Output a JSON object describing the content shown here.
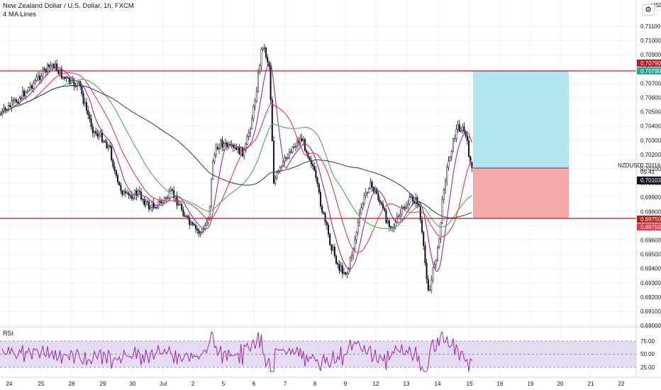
{
  "header": {
    "title": "New Zealand Dollar / U.S. Dollar, 1h, FXCM",
    "indicator": "4 MA Lines"
  },
  "currency": "USD",
  "rsi": {
    "label": "RSI",
    "levels": [
      "75.00",
      "50.00",
      "25.00"
    ]
  },
  "symbol": {
    "name": "NZDUSD",
    "price": "0.70116",
    "countdown": "05:41"
  },
  "price_axis": [
    "0.71100",
    "0.71000",
    "0.70900",
    "0.70800",
    "0.70700",
    "0.70600",
    "0.70500",
    "0.70400",
    "0.70300",
    "0.70200",
    "0.70100",
    "0.70000",
    "0.69900",
    "0.69800",
    "0.69700",
    "0.69600",
    "0.69500",
    "0.69400",
    "0.69300",
    "0.69200",
    "0.69100",
    "0.69000"
  ],
  "markers": {
    "upper": "0.70790",
    "upper_target": "0.70790",
    "lower": "0.69750",
    "lower_stop": "0.69750",
    "last": "0.70103"
  },
  "time_axis": [
    "24",
    "25",
    "28",
    "29",
    "30",
    "Jul",
    "2",
    "5",
    "6",
    "7",
    "8",
    "9",
    "12",
    "13",
    "14",
    "15",
    "16",
    "19",
    "20",
    "21",
    "22"
  ],
  "colors": {
    "resistance": "#b71c1c",
    "profit_zone": "#b2e6ee",
    "loss_zone": "#f4a9a8",
    "ma1": "#9c27b0",
    "ma2": "#f23645",
    "ma3": "#4caf50",
    "ma4": "#434651",
    "rsi": "#9c27b0"
  },
  "settings_icon": "gear-icon"
}
